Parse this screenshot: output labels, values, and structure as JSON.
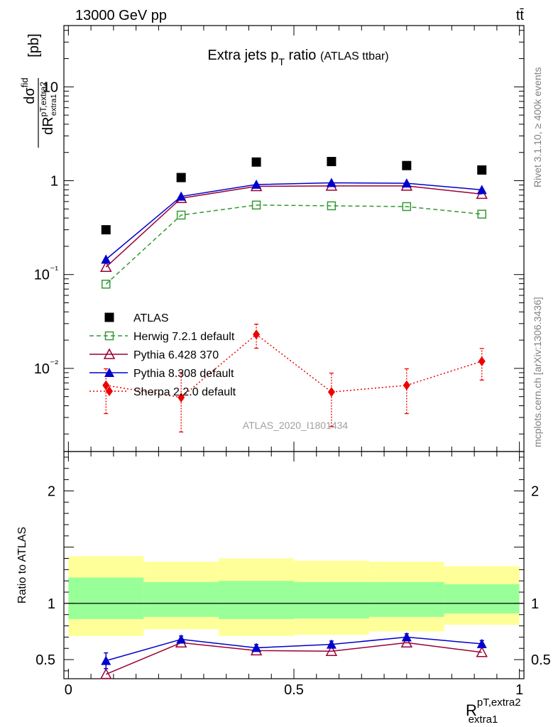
{
  "header": {
    "energy_label": "13000 GeV pp",
    "process_label": "tt̄"
  },
  "side_labels": {
    "rivet": "Rivet 3.1.10, ≥ 400k events",
    "mcplots": "mcplots.cern.ch [arXiv:1306.3436]"
  },
  "chart_data": [
    {
      "type": "scatter",
      "title": "Extra jets p",
      "title_sub": "T",
      "title_rest": " ratio",
      "title_note": "(ATLAS ttbar)",
      "ylabel": "dσ^fid / dR^{pT,extra2}_{extra1} [pb]",
      "ylabel_parts": {
        "numerator": "dσ",
        "numerator_sup": "fid",
        "denominator": "dR",
        "denominator_sup": "pT,extra2",
        "denominator_sub": "extra1",
        "unit": "[pb]"
      },
      "yscale": "log",
      "ylim": [
        0.0013,
        45
      ],
      "xlim": [
        -0.01,
        1.01
      ],
      "y_tick_labels": [
        "10⁻²",
        "10⁻¹",
        "1",
        "10"
      ],
      "watermark": "ATLAS_2020_I1801434",
      "legend_position": "middle-left",
      "x": [
        0.0833,
        0.25,
        0.4167,
        0.5833,
        0.75,
        0.9167
      ],
      "series": [
        {
          "name": "ATLAS",
          "color": "#000000",
          "marker": "square-filled",
          "values": [
            0.3,
            1.08,
            1.58,
            1.6,
            1.45,
            1.3
          ]
        },
        {
          "name": "Herwig 7.2.1 default",
          "color": "#339933",
          "marker": "square-open",
          "line": "dashed",
          "values": [
            0.079,
            0.43,
            0.55,
            0.54,
            0.53,
            0.44
          ]
        },
        {
          "name": "Pythia 6.428 370",
          "color": "#990033",
          "marker": "triangle-open",
          "line": "solid",
          "values": [
            0.12,
            0.65,
            0.87,
            0.88,
            0.88,
            0.72
          ]
        },
        {
          "name": "Pythia 8.308 default",
          "color": "#0000cc",
          "marker": "triangle-filled",
          "line": "solid",
          "values": [
            0.145,
            0.68,
            0.91,
            0.95,
            0.94,
            0.8
          ]
        },
        {
          "name": "Sherpa 2.2.0 default",
          "color": "#ee0000",
          "marker": "diamond-filled",
          "line": "dotted",
          "values": [
            0.0066,
            0.0049,
            0.023,
            0.0056,
            0.0066,
            0.0119
          ],
          "err_lo": [
            0.0033,
            0.0028,
            0.0066,
            0.0032,
            0.0033,
            0.0044
          ],
          "err_hi": [
            0.0033,
            0.0041,
            0.0066,
            0.0033,
            0.0033,
            0.0044
          ]
        }
      ]
    },
    {
      "type": "line",
      "ylabel": "Ratio to ATLAS",
      "xlabel": "R",
      "xlabel_sup": "pT,extra2",
      "xlabel_sub": "extra1",
      "ylim": [
        0.33,
        2.35
      ],
      "xlim": [
        -0.01,
        1.01
      ],
      "x_tick_labels": [
        "0",
        "0.5",
        "1"
      ],
      "y_tick_labels": [
        "0.5",
        "1",
        "2"
      ],
      "bins": [
        0,
        0.1667,
        0.3333,
        0.5,
        0.6667,
        0.8333,
        1.0
      ],
      "band_stat": {
        "color": "#99ff99",
        "lo": [
          0.86,
          0.88,
          0.86,
          0.865,
          0.88,
          0.91
        ],
        "hi": [
          1.23,
          1.19,
          1.2,
          1.19,
          1.19,
          1.17
        ]
      },
      "band_total": {
        "color": "#ffff99",
        "lo": [
          0.71,
          0.77,
          0.71,
          0.72,
          0.75,
          0.81
        ],
        "hi": [
          1.42,
          1.37,
          1.4,
          1.38,
          1.37,
          1.33
        ]
      },
      "x": [
        0.0833,
        0.25,
        0.4167,
        0.5833,
        0.75,
        0.9167
      ],
      "series": [
        {
          "name": "Pythia 6.428 370",
          "color": "#990033",
          "values": [
            0.37,
            0.65,
            0.58,
            0.575,
            0.65,
            0.565
          ]
        },
        {
          "name": "Pythia 8.308 default",
          "color": "#0000cc",
          "values": [
            0.49,
            0.68,
            0.605,
            0.635,
            0.7,
            0.64
          ],
          "err": [
            0.07,
            0.03,
            0.03,
            0.03,
            0.03,
            0.03
          ]
        }
      ]
    }
  ]
}
